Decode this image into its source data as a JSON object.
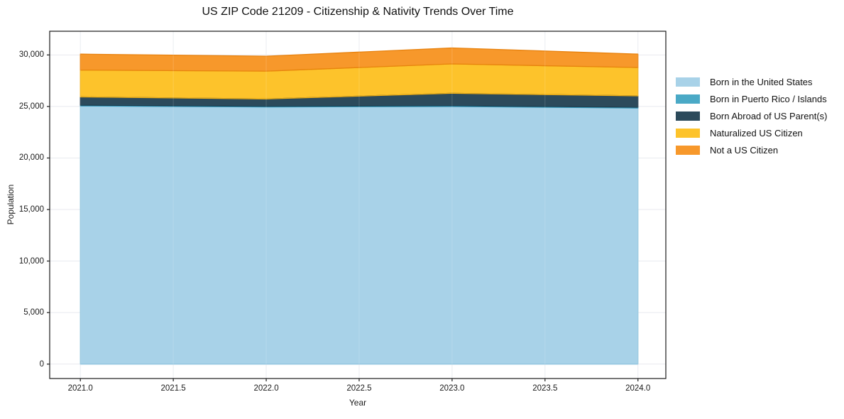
{
  "chart_data": {
    "type": "area",
    "stacked": true,
    "title": "US ZIP Code 21209 - Citizenship & Nativity Trends Over Time",
    "xlabel": "Year",
    "ylabel": "Population",
    "x": [
      2021,
      2022,
      2023,
      2024
    ],
    "series": [
      {
        "name": "Born in the United States",
        "color": "#a8d2e8",
        "edge_color": "#90c4de",
        "values": [
          25050,
          24950,
          25000,
          24850
        ]
      },
      {
        "name": "Born in Puerto Rico / Islands",
        "color": "#4aa9c6",
        "edge_color": "#3093b4",
        "values": [
          80,
          80,
          80,
          80
        ]
      },
      {
        "name": "Born Abroad of US Parent(s)",
        "color": "#2c4a5b",
        "edge_color": "#203a4a",
        "values": [
          800,
          700,
          1200,
          1100
        ]
      },
      {
        "name": "Naturalized US Citizen",
        "color": "#fdc32b",
        "edge_color": "#efae14",
        "values": [
          2600,
          2700,
          2850,
          2750
        ]
      },
      {
        "name": "Not a US Citizen",
        "color": "#f7982b",
        "edge_color": "#e8820e",
        "values": [
          1550,
          1450,
          1550,
          1300
        ]
      }
    ],
    "xticks": [
      {
        "value": 2021.0,
        "label": "2021.0"
      },
      {
        "value": 2021.5,
        "label": "2021.5"
      },
      {
        "value": 2022.0,
        "label": "2022.0"
      },
      {
        "value": 2022.5,
        "label": "2022.5"
      },
      {
        "value": 2023.0,
        "label": "2023.0"
      },
      {
        "value": 2023.5,
        "label": "2023.5"
      },
      {
        "value": 2024.0,
        "label": "2024.0"
      }
    ],
    "yticks": [
      {
        "value": 0,
        "label": "0"
      },
      {
        "value": 5000,
        "label": "5,000"
      },
      {
        "value": 10000,
        "label": "10,000"
      },
      {
        "value": 15000,
        "label": "15,000"
      },
      {
        "value": 20000,
        "label": "20,000"
      },
      {
        "value": 25000,
        "label": "25,000"
      },
      {
        "value": 30000,
        "label": "30,000"
      }
    ],
    "xlim": [
      2020.835,
      2024.15
    ],
    "ylim": [
      -1400,
      32300
    ],
    "grid": true,
    "legend_position": "right outside",
    "style": {
      "background": "#ffffff",
      "axis_color": "#1a1a1a",
      "grid_color": "#e8eaef",
      "text_color": "#1a1a1a"
    }
  }
}
